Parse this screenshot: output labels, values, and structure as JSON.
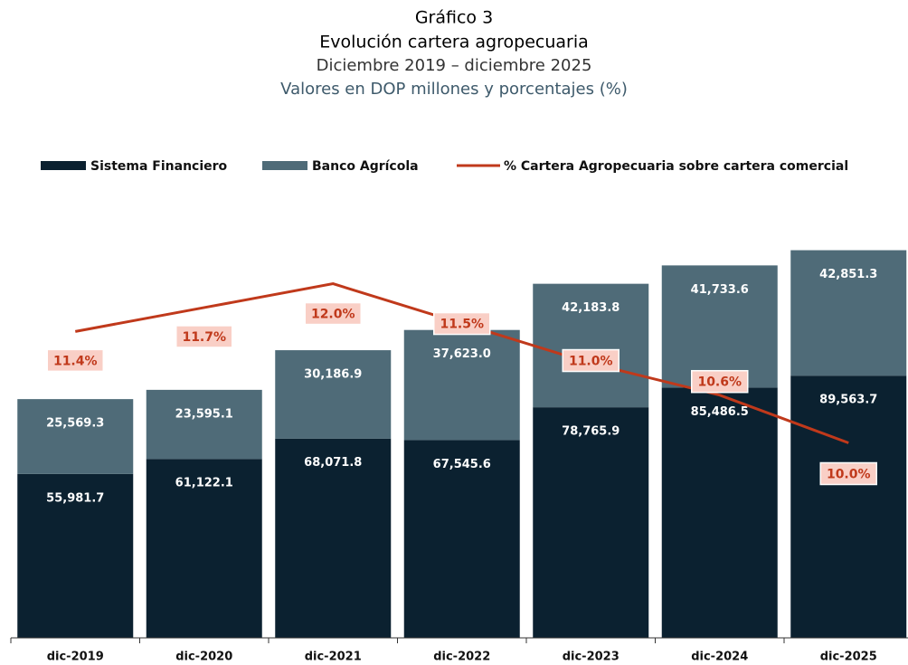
{
  "chart_data": {
    "type": "bar",
    "title": "Gráfico 3",
    "subtitle": "Evolución cartera agropecuaria",
    "period": "Diciembre 2019 – diciembre 2025",
    "units": "Valores en DOP millones y porcentajes (%)",
    "stacked": true,
    "categories": [
      "dic-2019",
      "dic-2020",
      "dic-2021",
      "dic-2022",
      "dic-2023",
      "dic-2024",
      "dic-2025"
    ],
    "series": [
      {
        "name": "Sistema Financiero",
        "color": "#0b2130",
        "type": "bar",
        "values": [
          55981.7,
          61122.1,
          68071.8,
          67545.6,
          78765.9,
          85486.5,
          89563.7
        ],
        "value_labels": [
          "55,981.7",
          "61,122.1",
          "68,071.8",
          "67,545.6",
          "78,765.9",
          "85,486.5",
          "89,563.7"
        ]
      },
      {
        "name": "Banco Agrícola",
        "color": "#4f6b78",
        "type": "bar",
        "values": [
          25569.3,
          23595.1,
          30186.9,
          37623.0,
          42183.8,
          41733.6,
          42851.3
        ],
        "value_labels": [
          "25,569.3",
          "23,595.1",
          "30,186.9",
          "37,623.0",
          "42,183.8",
          "41,733.6",
          "42,851.3"
        ]
      },
      {
        "name": "% Cartera Agropecuaria sobre cartera comercial",
        "color": "#c0391b",
        "type": "line",
        "axis": "y2",
        "values": [
          11.4,
          11.7,
          12.0,
          11.5,
          11.0,
          10.6,
          10.0
        ],
        "value_labels": [
          "11.4%",
          "11.7%",
          "12.0%",
          "11.5%",
          "11.0%",
          "10.6%",
          "10.0%"
        ]
      }
    ],
    "ylim": [
      0,
      140000
    ],
    "y2lim": [
      7.55,
      12.7
    ]
  }
}
